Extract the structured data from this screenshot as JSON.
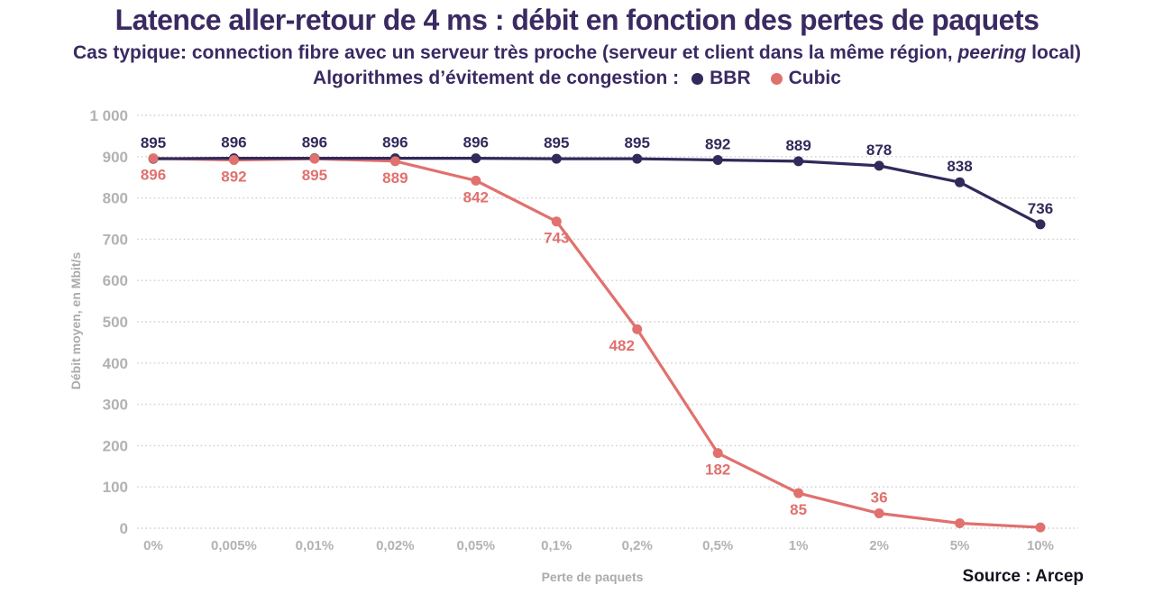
{
  "header": {
    "title": "Latence aller-retour de 4 ms : débit en fonction des pertes de paquets",
    "subtitle_part1": "Cas typique: connection fibre avec un serveur très proche (serveur et client dans la même région, ",
    "subtitle_italic": "peering",
    "subtitle_part2": " local)",
    "legend_label": "Algorithmes d’évitement de congestion :",
    "legend_items": [
      {
        "name": "BBR",
        "color": "#33295a"
      },
      {
        "name": "Cubic",
        "color": "#e0716e"
      }
    ]
  },
  "source": "Source : Arcep",
  "chart_data": {
    "type": "line",
    "title": "Latence aller-retour de 4 ms : débit en fonction des pertes de paquets",
    "categories": [
      "0%",
      "0,005%",
      "0,01%",
      "0,02%",
      "0,05%",
      "0,1%",
      "0,2%",
      "0,5%",
      "1%",
      "2%",
      "5%",
      "10%"
    ],
    "xlabel": "Perte de paquets",
    "ylabel": "Débit moyen, en Mbit/s",
    "ylim": [
      0,
      1000
    ],
    "ytick_step": 100,
    "ytick_labels": [
      "0",
      "100",
      "200",
      "300",
      "400",
      "500",
      "600",
      "700",
      "800",
      "900",
      "1 000"
    ],
    "grid": "horizontal-dotted",
    "gridline_color": "#cccccc",
    "tick_label_color": "#b4b1b4",
    "legend_position": "top-center-under-subtitle",
    "series": [
      {
        "name": "BBR",
        "color": "#33295a",
        "values": [
          895,
          896,
          896,
          896,
          896,
          895,
          895,
          892,
          889,
          878,
          838,
          736
        ],
        "labels": [
          "895",
          "896",
          "896",
          "896",
          "896",
          "895",
          "895",
          "892",
          "889",
          "878",
          "838",
          "736"
        ],
        "label_side": "above"
      },
      {
        "name": "Cubic",
        "color": "#e0716e",
        "values": [
          896,
          892,
          895,
          889,
          842,
          743,
          482,
          182,
          85,
          36,
          12,
          2
        ],
        "labels": [
          "896",
          "892",
          "895",
          "889",
          "842",
          "743",
          "482",
          "182",
          "85",
          "36",
          "",
          ""
        ],
        "label_side": "below",
        "label_overrides": {
          "6": {
            "dx": -17
          },
          "9": {
            "side": "above"
          }
        }
      }
    ]
  }
}
